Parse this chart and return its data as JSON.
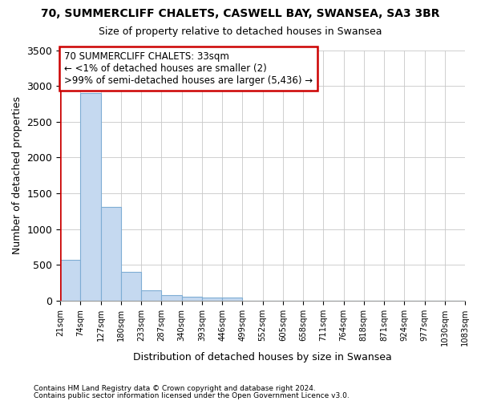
{
  "title_line1": "70, SUMMERCLIFF CHALETS, CASWELL BAY, SWANSEA, SA3 3BR",
  "title_line2": "Size of property relative to detached houses in Swansea",
  "xlabel": "Distribution of detached houses by size in Swansea",
  "ylabel": "Number of detached properties",
  "footnote1": "Contains HM Land Registry data © Crown copyright and database right 2024.",
  "footnote2": "Contains public sector information licensed under the Open Government Licence v3.0.",
  "bin_labels": [
    "21sqm",
    "74sqm",
    "127sqm",
    "180sqm",
    "233sqm",
    "287sqm",
    "340sqm",
    "393sqm",
    "446sqm",
    "499sqm",
    "552sqm",
    "605sqm",
    "658sqm",
    "711sqm",
    "764sqm",
    "818sqm",
    "871sqm",
    "924sqm",
    "977sqm",
    "1030sqm",
    "1083sqm"
  ],
  "bar_values": [
    570,
    2900,
    1310,
    405,
    150,
    75,
    55,
    45,
    40,
    0,
    0,
    0,
    0,
    0,
    0,
    0,
    0,
    0,
    0,
    0
  ],
  "bar_color": "#c5d9f0",
  "bar_edge_color": "#7eadd4",
  "grid_color": "#c8c8c8",
  "figure_bg": "#ffffff",
  "plot_bg": "#ffffff",
  "annotation_text_line1": "70 SUMMERCLIFF CHALETS: 33sqm",
  "annotation_text_line2": "← <1% of detached houses are smaller (2)",
  "annotation_text_line3": ">99% of semi-detached houses are larger (5,436) →",
  "annotation_box_facecolor": "#ffffff",
  "annotation_box_edgecolor": "#cc0000",
  "red_line_color": "#cc0000",
  "ylim": [
    0,
    3500
  ],
  "yticks": [
    0,
    500,
    1000,
    1500,
    2000,
    2500,
    3000,
    3500
  ]
}
